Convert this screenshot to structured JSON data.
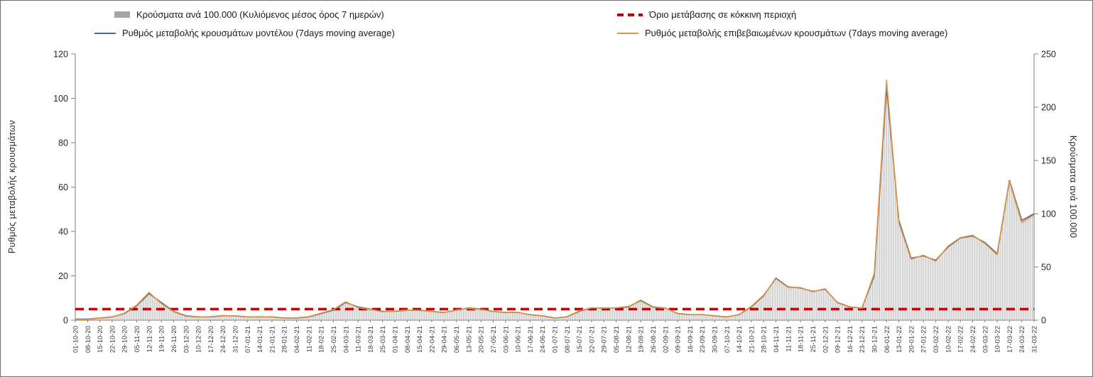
{
  "chart_data": {
    "type": "bar",
    "title": "",
    "legend": [
      {
        "id": "cases",
        "label": "Κρούσματα ανά 100.000 (Κυλιόμενος μέσος όρος 7 ημερών)",
        "marker": "bar",
        "color": "#a6a6a6"
      },
      {
        "id": "threshold",
        "label": "Όριο μετάβασης σε κόκκινη περιοχή",
        "marker": "dashed-line",
        "color": "#c00000"
      },
      {
        "id": "model",
        "label": "Ρυθμός μεταβολής κρουσμάτων μοντέλου (7days moving average)",
        "marker": "line",
        "color": "#44699c"
      },
      {
        "id": "confirmed",
        "label": "Ρυθμός μεταβολής επιβεβαιωμένων κρουσμάτων (7days moving average)",
        "marker": "line",
        "color": "#e0923c"
      }
    ],
    "left_axis": {
      "label": "Ρυθμός μεταβολής κρουσμάτων",
      "min": 0,
      "max": 120,
      "ticks": [
        0,
        20,
        40,
        60,
        80,
        100,
        120
      ]
    },
    "right_axis": {
      "label": "Κρούσματα ανά 100.000",
      "min": 0,
      "max": 250,
      "ticks": [
        0,
        50,
        100,
        150,
        200,
        250
      ]
    },
    "threshold_left_value": 5,
    "bar_color": "#bdbdbd",
    "categories": [
      "01-10-20",
      "08-10-20",
      "15-10-20",
      "22-10-20",
      "29-10-20",
      "05-11-20",
      "12-11-20",
      "19-11-20",
      "26-11-20",
      "03-12-20",
      "10-12-20",
      "17-12-20",
      "24-12-20",
      "31-12-20",
      "07-01-21",
      "14-01-21",
      "21-01-21",
      "28-01-21",
      "04-02-21",
      "11-02-21",
      "18-02-21",
      "25-02-21",
      "04-03-21",
      "11-03-21",
      "18-03-21",
      "25-03-21",
      "01-04-21",
      "08-04-21",
      "15-04-21",
      "22-04-21",
      "29-04-21",
      "06-05-21",
      "13-05-21",
      "20-05-21",
      "27-05-21",
      "03-06-21",
      "10-06-21",
      "17-06-21",
      "24-06-21",
      "01-07-21",
      "08-07-21",
      "15-07-21",
      "22-07-21",
      "29-07-21",
      "05-08-21",
      "12-08-21",
      "19-08-21",
      "26-08-21",
      "02-09-21",
      "09-09-21",
      "16-09-21",
      "23-09-21",
      "30-09-21",
      "07-10-21",
      "14-10-21",
      "21-10-21",
      "28-10-21",
      "04-11-21",
      "11-11-21",
      "18-11-21",
      "25-11-21",
      "02-12-21",
      "09-12-21",
      "16-12-21",
      "23-12-21",
      "30-12-21",
      "06-01-22",
      "13-01-22",
      "20-01-22",
      "27-01-22",
      "03-02-22",
      "10-02-22",
      "17-02-22",
      "24-02-22",
      "03-03-22",
      "10-03-22",
      "17-03-22",
      "24-03-22",
      "31-03-22"
    ],
    "series": [
      {
        "name": "model",
        "axis": "left",
        "values": [
          0.5,
          0.5,
          1,
          1.5,
          3,
          6.5,
          12,
          8,
          4,
          2,
          1.5,
          1.5,
          2,
          2,
          1.5,
          1.5,
          1.5,
          1,
          1,
          1.5,
          3,
          4.5,
          8,
          6,
          5,
          4,
          4,
          4.5,
          4.5,
          4,
          3.5,
          4.5,
          5.5,
          5,
          4,
          3.5,
          3.5,
          2.5,
          2,
          1,
          1.5,
          4,
          5.5,
          5.5,
          5.5,
          6,
          9,
          6,
          5.5,
          3,
          2.5,
          2.5,
          2,
          1.5,
          2.5,
          6,
          11,
          19,
          15,
          14.5,
          13,
          14,
          8,
          6,
          5.5,
          20,
          105,
          45,
          28,
          29,
          27,
          33,
          37,
          38,
          35,
          30,
          63,
          45,
          48
        ]
      },
      {
        "name": "confirmed",
        "axis": "left",
        "values": [
          0.3,
          0.4,
          0.9,
          1.4,
          3.2,
          6.8,
          12.5,
          7.5,
          3.8,
          1.8,
          1.4,
          1.6,
          2.1,
          1.9,
          1.4,
          1.6,
          1.4,
          0.9,
          1.1,
          1.6,
          3.2,
          4.8,
          8.3,
          5.7,
          4.8,
          3.8,
          4.1,
          4.6,
          4.4,
          3.9,
          3.4,
          4.6,
          5.3,
          4.8,
          3.9,
          3.4,
          3.6,
          2.4,
          1.9,
          0.9,
          1.6,
          4.2,
          5.6,
          5.4,
          5.6,
          6.2,
          8.7,
          5.8,
          5.4,
          2.9,
          2.4,
          2.6,
          1.9,
          1.4,
          2.6,
          6.2,
          11.3,
          18.7,
          14.8,
          14.7,
          12.8,
          14.2,
          7.8,
          5.9,
          5.4,
          21,
          108,
          44,
          27.5,
          29.3,
          26.6,
          33.4,
          37.2,
          38.3,
          34.6,
          29.5,
          62.5,
          44,
          47.5
        ]
      },
      {
        "name": "cases_per_100k",
        "axis": "right",
        "values": [
          1,
          1,
          2.1,
          3.1,
          6.3,
          13.5,
          25,
          16.7,
          8.3,
          4.2,
          3.1,
          3.1,
          4.2,
          4.2,
          3.1,
          3.1,
          3.1,
          2.1,
          2.1,
          3.1,
          6.3,
          9.4,
          16.7,
          12.5,
          10.4,
          8.3,
          8.3,
          9.4,
          9.4,
          8.3,
          7.3,
          9.4,
          11.5,
          10.4,
          8.3,
          7.3,
          7.3,
          5.2,
          4.2,
          2.1,
          3.1,
          8.3,
          11.5,
          11.5,
          11.5,
          12.5,
          18.8,
          12.5,
          11.5,
          6.3,
          5.2,
          5.2,
          4.2,
          3.1,
          5.2,
          12.5,
          22.9,
          39.6,
          31.3,
          30.2,
          27.1,
          29.2,
          16.7,
          12.5,
          11.5,
          41.7,
          226,
          93.8,
          58.3,
          60.4,
          56.3,
          68.8,
          77.1,
          79.2,
          72.9,
          62.5,
          131.3,
          93.8,
          100
        ]
      }
    ]
  }
}
